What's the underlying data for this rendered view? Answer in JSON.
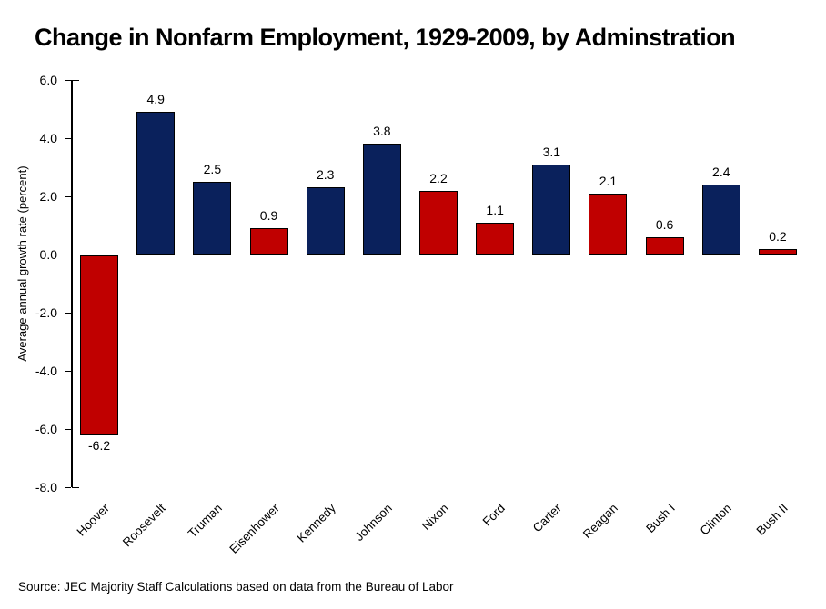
{
  "source_note": "Source: JEC Majority Staff Calculations based on data from the Bureau of Labor",
  "chart_data": {
    "type": "bar",
    "title": "Change in Nonfarm Employment, 1929-2009, by Adminstration",
    "ylabel": "Average annual growth rate (percent)",
    "xlabel": "",
    "ylim": [
      -8.0,
      6.0
    ],
    "ytick_interval": 2.0,
    "yticks": [
      6.0,
      4.0,
      2.0,
      0.0,
      -2.0,
      -4.0,
      -6.0,
      -8.0
    ],
    "ytick_labels": [
      "6.0",
      "4.0",
      "2.0",
      "0.0",
      "-2.0",
      "-4.0",
      "-6.0",
      "-8.0"
    ],
    "grid": false,
    "legend_position": "none",
    "categories": [
      "Hoover",
      "Roosevelt",
      "Truman",
      "Eisenhower",
      "Kennedy",
      "Johnson",
      "Nixon",
      "Ford",
      "Carter",
      "Reagan",
      "Bush I",
      "Clinton",
      "Bush II"
    ],
    "values": [
      -6.2,
      4.9,
      2.5,
      0.9,
      2.3,
      3.8,
      2.2,
      1.1,
      3.1,
      2.1,
      0.6,
      2.4,
      0.2
    ],
    "value_labels": [
      "-6.2",
      "4.9",
      "2.5",
      "0.9",
      "2.3",
      "3.8",
      "2.2",
      "1.1",
      "3.1",
      "2.1",
      "0.6",
      "2.4",
      "0.2"
    ],
    "bar_color_keys": [
      "red",
      "navy",
      "navy",
      "red",
      "navy",
      "navy",
      "red",
      "red",
      "navy",
      "red",
      "red",
      "navy",
      "red"
    ],
    "colors": {
      "navy": "#0A215C",
      "red": "#C00000",
      "bar_border": "#000000",
      "axis": "#000000",
      "text": "#000000"
    }
  }
}
